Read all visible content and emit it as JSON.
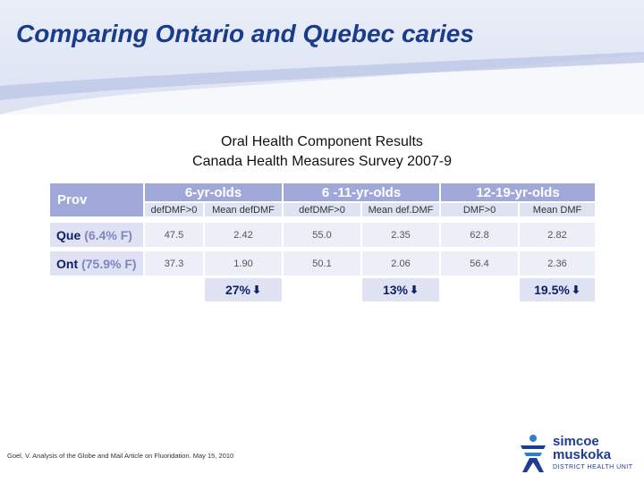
{
  "slide": {
    "title": "Comparing Ontario and Quebec caries",
    "subtitle_line1": "Oral Health Component Results",
    "subtitle_line2": "Canada Health Measures Survey 2007-9",
    "citation": "Goel, V. Analysis of the Globe and Mail Article on Fluoridation. May 15, 2010"
  },
  "table": {
    "corner_label": "Prov",
    "groups": [
      "6-yr-olds",
      "6 -11-yr-olds",
      "12-19-yr-olds"
    ],
    "subheaders": [
      "defDMF>0",
      "Mean defDMF",
      "defDMF>0",
      "Mean def.DMF",
      "DMF>0",
      "Mean DMF"
    ],
    "rows": [
      {
        "name": "Que",
        "fluoridation": "(6.4% F)",
        "values": [
          "47.5",
          "2.42",
          "55.0",
          "2.35",
          "62.8",
          "2.82"
        ]
      },
      {
        "name": "Ont",
        "fluoridation": "(75.9% F)",
        "values": [
          "37.3",
          "1.90",
          "50.1",
          "2.06",
          "56.4",
          "2.36"
        ]
      }
    ],
    "reductions": [
      "27%",
      "13%",
      "19.5%"
    ]
  },
  "colors": {
    "title": "#1a3c8c",
    "header_bg": "#9fa8d9",
    "subheader_bg": "#dfe2f2",
    "value_bg": "#eceef8",
    "label_text": "#0e1f66"
  },
  "logo": {
    "line1": "simcoe",
    "line2": "muskoka",
    "line3": "DISTRICT HEALTH UNIT",
    "icon": "stick-figure-logo-icon"
  }
}
